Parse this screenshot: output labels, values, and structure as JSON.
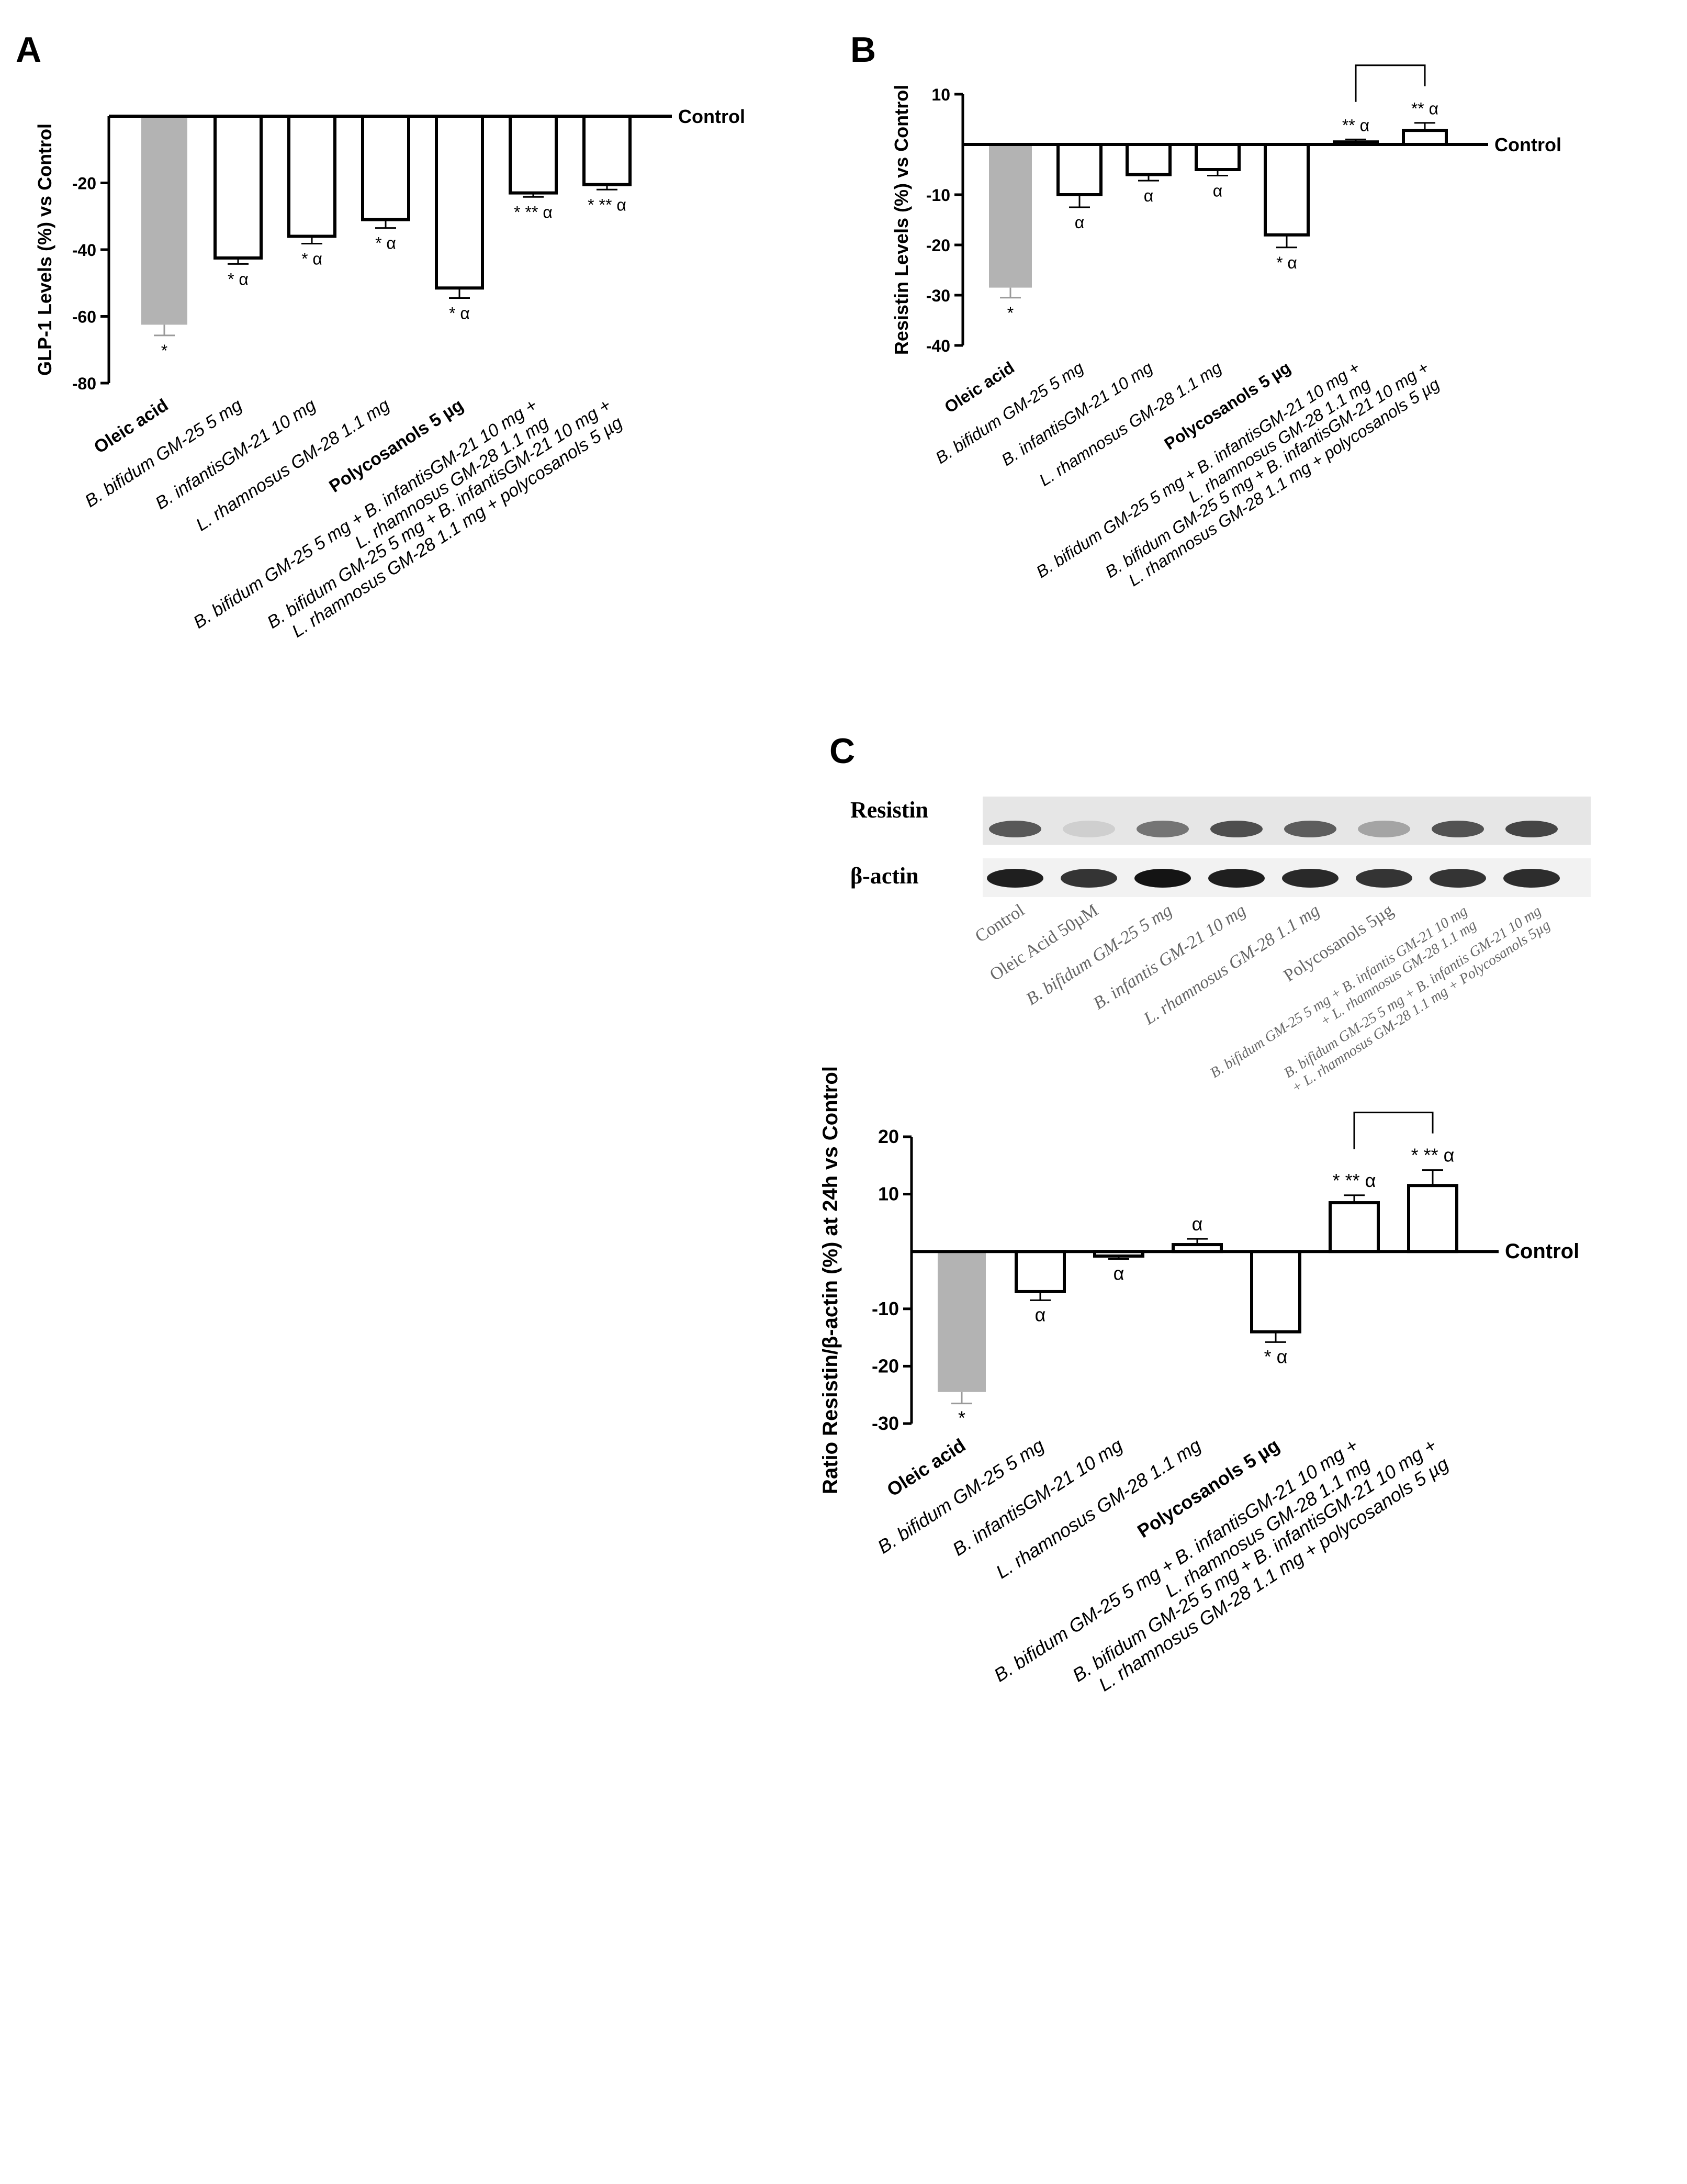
{
  "panel_labels": {
    "a": "A",
    "b": "B",
    "c": "C"
  },
  "shared_categories": [
    "Oleic acid",
    "B. bifidum GM-25 5 mg",
    "B. infantisGM-21 10 mg",
    "L. rhamnosus GM-28 1.1 mg",
    "Polycosanols 5 µg",
    "B. bifidum GM-25 5 mg + B. infantisGM-21 10 mg + L. rhamnosus GM-28 1.1 mg",
    "B. bifidum GM-25 5 mg + B. infantisGM-21 10 mg + L. rhamnosus GM-28 1.1 mg + polycosanols 5 µg"
  ],
  "category_labels": [
    {
      "lines": [
        "Oleic acid"
      ]
    },
    {
      "lines": [
        "B. bifidum GM-25 5 mg"
      ]
    },
    {
      "lines": [
        "B. infantisGM-21 10 mg"
      ]
    },
    {
      "lines": [
        "L. rhamnosus GM-28 1.1 mg"
      ]
    },
    {
      "lines": [
        "Polycosanols 5 µg"
      ]
    },
    {
      "lines": [
        "B. bifidum GM-25 5 mg + B. infantisGM-21 10 mg +",
        "L. rhamnosus GM-28 1.1 mg"
      ]
    },
    {
      "lines": [
        "B. bifidum GM-25 5 mg + B. infantisGM-21 10 mg +",
        "L. rhamnosus GM-28 1.1 mg + polycosanols 5 µg"
      ]
    }
  ],
  "control_label": "Control",
  "colors": {
    "oleic_fill": "#b3b3b3",
    "bar_fill": "#ffffff",
    "stroke": "#000000"
  },
  "chart_data": [
    {
      "id": "A",
      "type": "bar",
      "ylabel": "GLP-1 Levels (%) vs Control",
      "ylim": [
        -80,
        0
      ],
      "yticks": [
        -20,
        -40,
        -60,
        -80
      ],
      "values": [
        -62.5,
        -42.5,
        -36,
        -31,
        -51.5,
        -23,
        -20.5
      ],
      "errors": [
        3.2,
        1.8,
        2.2,
        2.5,
        3.0,
        1.2,
        1.5
      ],
      "annotations": [
        "*",
        "* α",
        "* α",
        "* α",
        "* α",
        "* ** α",
        "* ** α"
      ],
      "significance_bracket": null
    },
    {
      "id": "B",
      "type": "bar",
      "ylabel": "Resistin Levels (%) vs Control",
      "ylim": [
        -40,
        10
      ],
      "yticks": [
        10,
        -10,
        -20,
        -30,
        -40
      ],
      "values": [
        -28.5,
        -10,
        -6,
        -5,
        -18,
        0.5,
        2.8
      ],
      "errors": [
        2.0,
        2.5,
        1.2,
        1.2,
        2.5,
        0.5,
        1.5
      ],
      "annotations": [
        "*",
        "α",
        "α",
        "α",
        "* α",
        "** α",
        "** α"
      ],
      "significance_bracket": [
        5,
        6
      ]
    },
    {
      "id": "C",
      "type": "bar",
      "ylabel": "Ratio Resistin/β-actin (%) at 24h vs Control",
      "ylim": [
        -30,
        20
      ],
      "yticks": [
        20,
        10,
        -10,
        -20,
        -30
      ],
      "values": [
        -24.5,
        -7,
        -0.8,
        1.2,
        -14,
        8.5,
        11.5
      ],
      "errors": [
        2.0,
        1.5,
        0.5,
        1.0,
        1.8,
        1.3,
        2.7
      ],
      "annotations": [
        "*",
        "α",
        "α",
        "α",
        "* α",
        "* ** α",
        "* ** α"
      ],
      "significance_bracket": [
        5,
        6
      ]
    }
  ],
  "blot": {
    "row_labels": [
      "Resistin",
      "β-actin"
    ],
    "lane_labels": [
      [
        "Control"
      ],
      [
        "Oleic Acid 50µM"
      ],
      [
        "B. bifidum GM-25 5 mg"
      ],
      [
        "B. infantis GM-21 10 mg"
      ],
      [
        "L. rhamnosus GM-28 1.1 mg"
      ],
      [
        "Polycosanols 5µg"
      ],
      [
        "B. bifidum GM-25 5 mg + B. infantis GM-21 10 mg",
        "+ L. rhamnosus GM-28 1.1 mg"
      ],
      [
        "B. bifidum GM-25 5 mg + B. infantis GM-21 10 mg",
        "+ L. rhamnosus GM-28 1.1 mg + Polycosanols 5µg"
      ]
    ],
    "resistin_intensity": [
      0.75,
      0.12,
      0.6,
      0.8,
      0.72,
      0.35,
      0.78,
      0.85
    ],
    "actin_intensity": [
      0.95,
      0.85,
      1.0,
      0.95,
      0.9,
      0.85,
      0.85,
      0.88
    ]
  }
}
